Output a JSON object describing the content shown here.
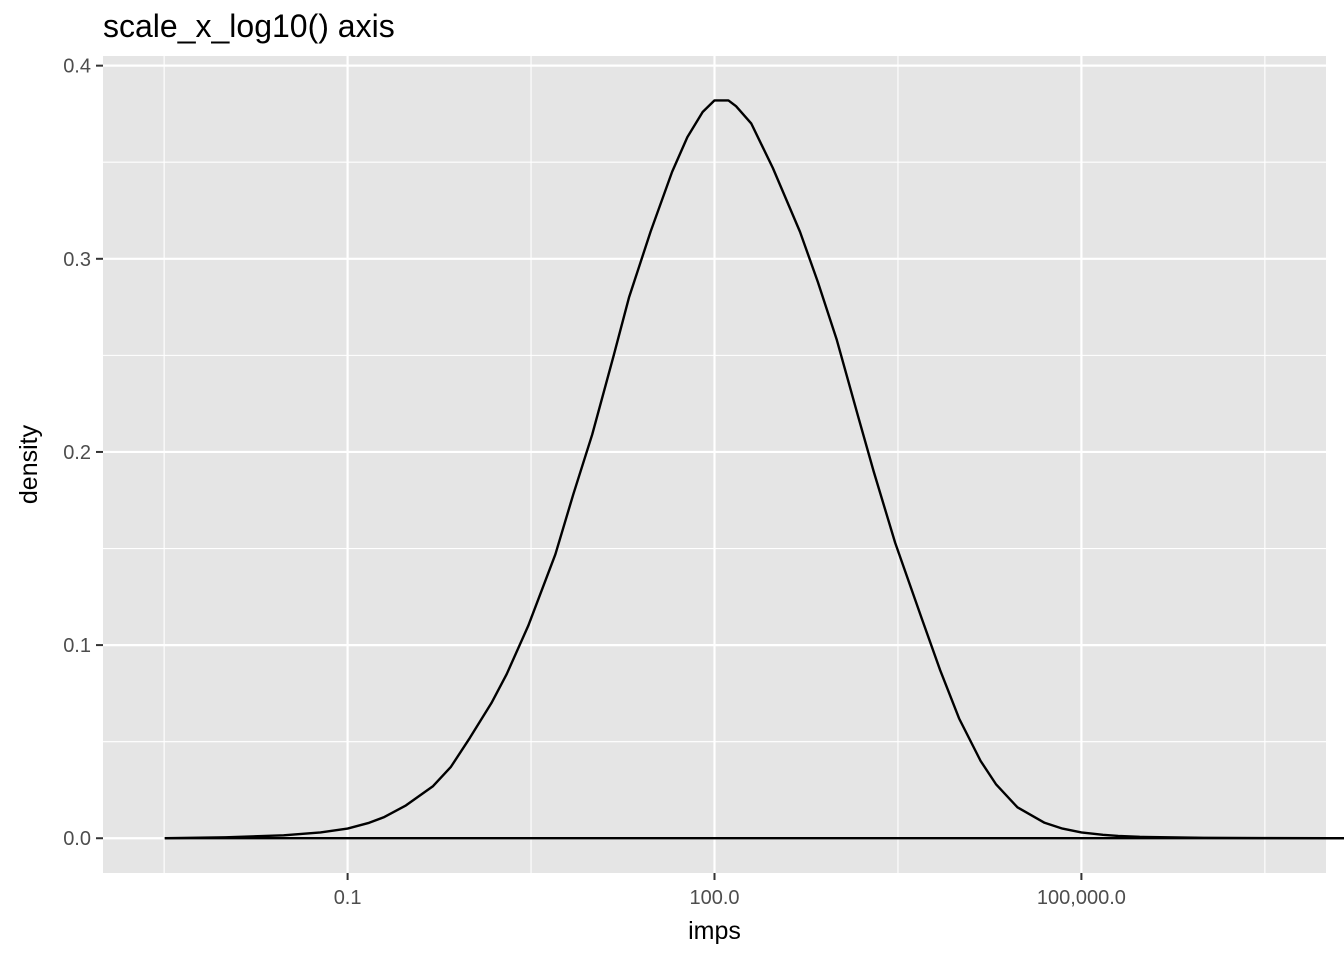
{
  "chart_data": {
    "type": "line",
    "title": "scale_x_log10() axis",
    "xlabel": "imps",
    "ylabel": "density",
    "x_scale": "log10",
    "xlim": [
      0.001,
      10000000
    ],
    "ylim": [
      -0.018,
      0.405
    ],
    "x_ticks": [
      {
        "value": 0.1,
        "label": "0.1"
      },
      {
        "value": 100,
        "label": "100.0"
      },
      {
        "value": 100000,
        "label": "100,000.0"
      }
    ],
    "y_ticks": [
      {
        "value": 0.0,
        "label": "0.0"
      },
      {
        "value": 0.1,
        "label": "0.1"
      },
      {
        "value": 0.2,
        "label": "0.2"
      },
      {
        "value": 0.3,
        "label": "0.3"
      },
      {
        "value": 0.4,
        "label": "0.4"
      }
    ],
    "grid": true,
    "colors": {
      "panel": "#e5e5e5",
      "grid": "#ffffff",
      "line": "#000000",
      "tick_text": "#4d4d4d"
    },
    "series": [
      {
        "x": [
          0.0032,
          0.01,
          0.03,
          0.06,
          0.1,
          0.15,
          0.2,
          0.3,
          0.5,
          0.7,
          1,
          1.5,
          2,
          3,
          5,
          7,
          10,
          15,
          20,
          30,
          45,
          60,
          80,
          100,
          130,
          150,
          200,
          300,
          500,
          700,
          1000,
          1500,
          2000,
          3000,
          5000,
          7000,
          10000,
          15000,
          20000,
          30000,
          50000,
          70000,
          100000,
          150000,
          200000,
          300000,
          1000000,
          3000000,
          10000000,
          15500000
        ],
        "y": [
          0.0,
          0.0005,
          0.0015,
          0.003,
          0.005,
          0.008,
          0.011,
          0.017,
          0.027,
          0.037,
          0.052,
          0.07,
          0.085,
          0.11,
          0.147,
          0.178,
          0.209,
          0.25,
          0.28,
          0.314,
          0.345,
          0.363,
          0.376,
          0.382,
          0.382,
          0.379,
          0.37,
          0.347,
          0.314,
          0.288,
          0.258,
          0.218,
          0.19,
          0.153,
          0.113,
          0.087,
          0.062,
          0.04,
          0.028,
          0.016,
          0.008,
          0.005,
          0.003,
          0.0018,
          0.0012,
          0.0007,
          0.0002,
          0.0001,
          0.0,
          0.0
        ]
      }
    ]
  }
}
